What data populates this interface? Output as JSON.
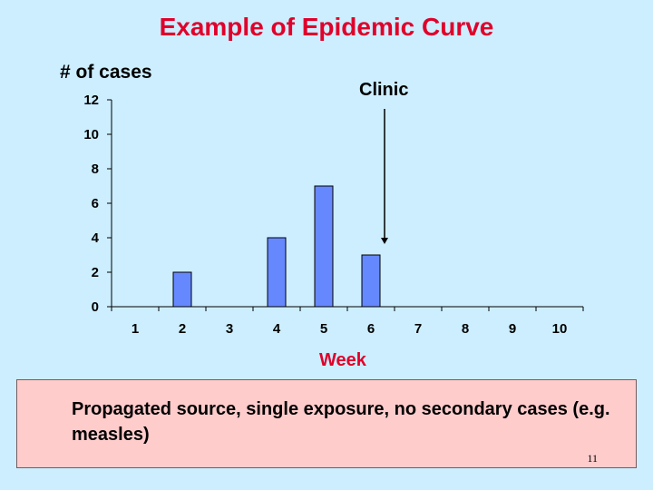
{
  "slide": {
    "title": "Example of Epidemic Curve",
    "caption": "Propagated source, single exposure, no secondary cases (e.g. measles)",
    "slide_number": "11"
  },
  "colors": {
    "background": "#cceeff",
    "title": "#e0002a",
    "bar_fill": "#6688ff",
    "caption_background": "#ffcccc"
  },
  "chart_data": {
    "type": "bar",
    "title": "",
    "xlabel": "Week",
    "ylabel": "# of cases",
    "categories": [
      "1",
      "2",
      "3",
      "4",
      "5",
      "6",
      "7",
      "8",
      "9",
      "10"
    ],
    "values": [
      0,
      2,
      0,
      4,
      7,
      3,
      0,
      0,
      0,
      0
    ],
    "yticks": [
      "0",
      "2",
      "4",
      "6",
      "8",
      "10",
      "12"
    ],
    "ylim": [
      0,
      12
    ],
    "grid": false,
    "legend": "none",
    "annotation": {
      "label": "Clinic",
      "category": "6",
      "points_to": "top of bar"
    }
  }
}
